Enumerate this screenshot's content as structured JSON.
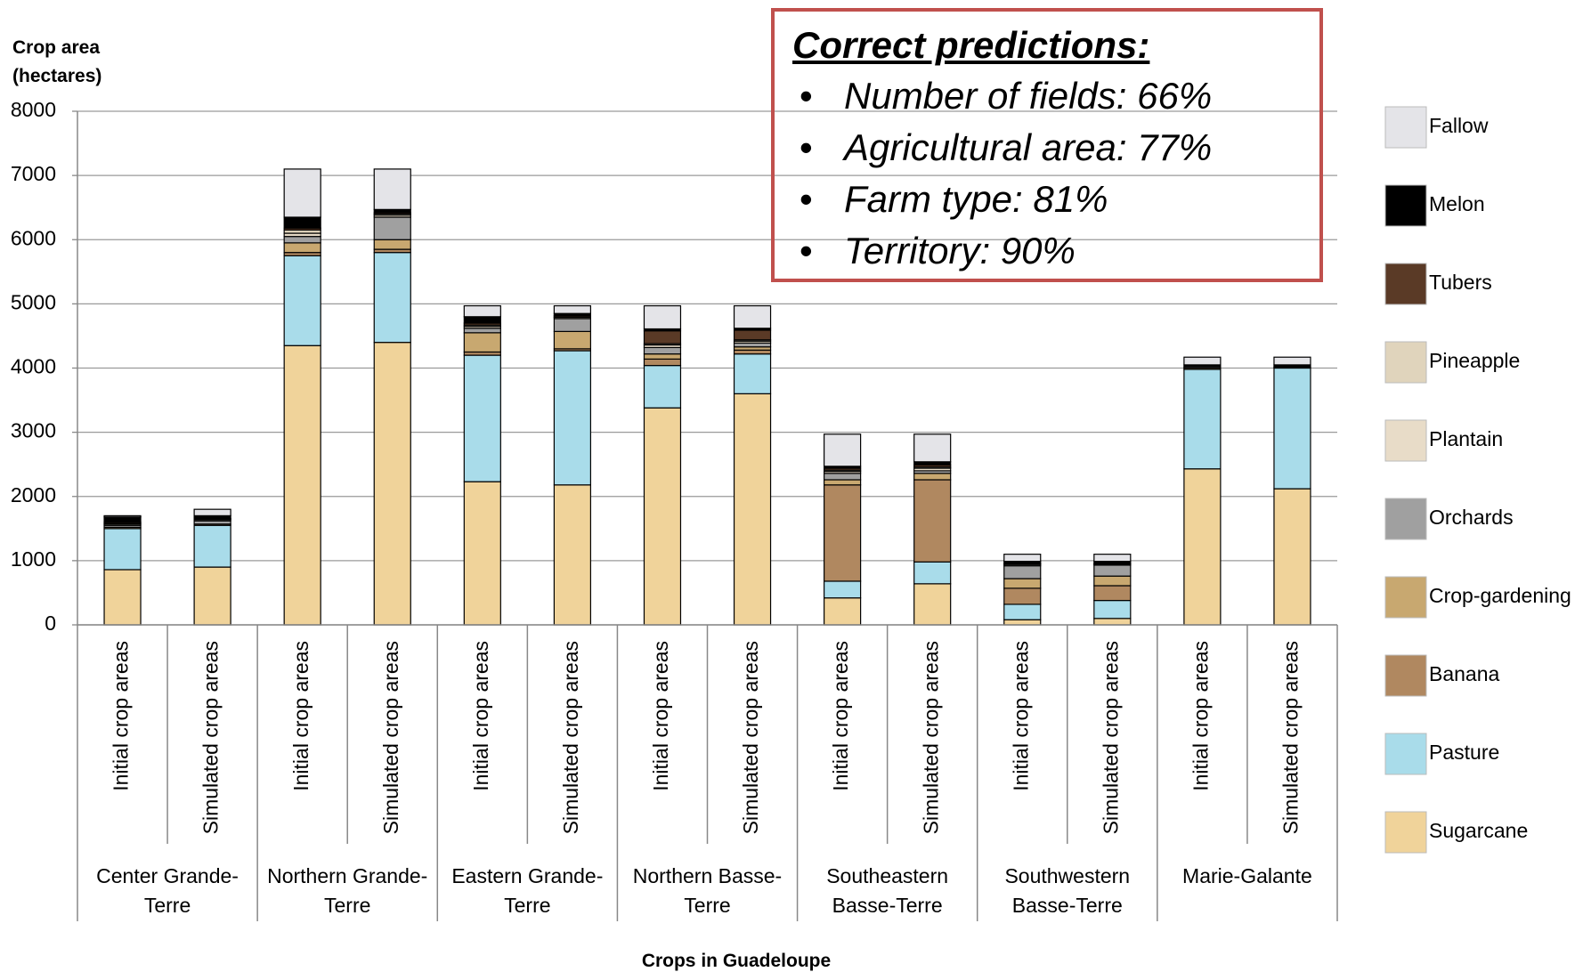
{
  "chart_data": {
    "type": "bar",
    "stacked": true,
    "y_axis_label": "Crop area (hectares)",
    "x_axis_label": "Crops in Guadeloupe",
    "annotation": {
      "title": "Correct predictions:",
      "items": [
        "Number of fields: 66%",
        "Agricultural area: 77%",
        "Farm type: 81%",
        "Territory: 90%"
      ]
    },
    "groups": [
      "Center Grande-Terre",
      "Northern Grande-Terre",
      "Eastern Grande-Terre",
      "Northern Basse-Terre",
      "Southeastern Basse-Terre",
      "Southwestern Basse-Terre",
      "Marie-Galante"
    ],
    "categories": [
      "Initial crop areas",
      "Simulated crop areas",
      "Initial crop areas",
      "Simulated crop areas",
      "Initial crop areas",
      "Simulated crop areas",
      "Initial crop areas",
      "Simulated crop areas",
      "Initial crop areas",
      "Simulated crop areas",
      "Initial crop areas",
      "Simulated crop areas",
      "Initial crop areas",
      "Simulated crop areas"
    ],
    "ylim": [
      0,
      8000
    ],
    "yticks": [
      0,
      1000,
      2000,
      3000,
      4000,
      5000,
      6000,
      7000,
      8000
    ],
    "grid": true,
    "legend": "right",
    "series": [
      {
        "name": "Sugarcane",
        "color": "#f0d39a",
        "values": [
          860,
          900,
          4350,
          4400,
          2230,
          2180,
          3380,
          3600,
          420,
          640,
          80,
          100,
          2430,
          2120
        ]
      },
      {
        "name": "Pasture",
        "color": "#a9dcea",
        "values": [
          640,
          650,
          1400,
          1400,
          1970,
          2090,
          660,
          620,
          260,
          340,
          240,
          280,
          1550,
          1880
        ]
      },
      {
        "name": "Banana",
        "color": "#b08860",
        "values": [
          0,
          0,
          50,
          50,
          50,
          30,
          100,
          60,
          1500,
          1280,
          250,
          230,
          0,
          0
        ]
      },
      {
        "name": "Crop-gardening",
        "color": "#c8a870",
        "values": [
          20,
          20,
          150,
          150,
          300,
          270,
          80,
          50,
          80,
          100,
          150,
          150,
          20,
          10
        ]
      },
      {
        "name": "Orchards",
        "color": "#a0a0a0",
        "values": [
          30,
          50,
          100,
          350,
          70,
          200,
          100,
          60,
          100,
          40,
          200,
          170,
          20,
          10
        ]
      },
      {
        "name": "Plantain",
        "color": "#e8dcc8",
        "values": [
          20,
          20,
          50,
          30,
          30,
          20,
          40,
          30,
          30,
          40,
          20,
          10,
          0,
          0
        ]
      },
      {
        "name": "Pineapple",
        "color": "#e0d4bc",
        "values": [
          10,
          10,
          50,
          20,
          20,
          10,
          20,
          20,
          20,
          20,
          10,
          10,
          0,
          0
        ]
      },
      {
        "name": "Tubers",
        "color": "#5a3a26",
        "values": [
          20,
          10,
          30,
          20,
          30,
          20,
          200,
          150,
          30,
          30,
          10,
          10,
          0,
          0
        ]
      },
      {
        "name": "Melon",
        "color": "#000000",
        "values": [
          80,
          40,
          170,
          50,
          100,
          30,
          30,
          30,
          30,
          50,
          30,
          30,
          30,
          30
        ]
      },
      {
        "name": "Fallow",
        "color": "#e4e4e8",
        "values": [
          20,
          100,
          750,
          630,
          170,
          120,
          360,
          350,
          500,
          430,
          110,
          110,
          120,
          120
        ]
      }
    ]
  }
}
